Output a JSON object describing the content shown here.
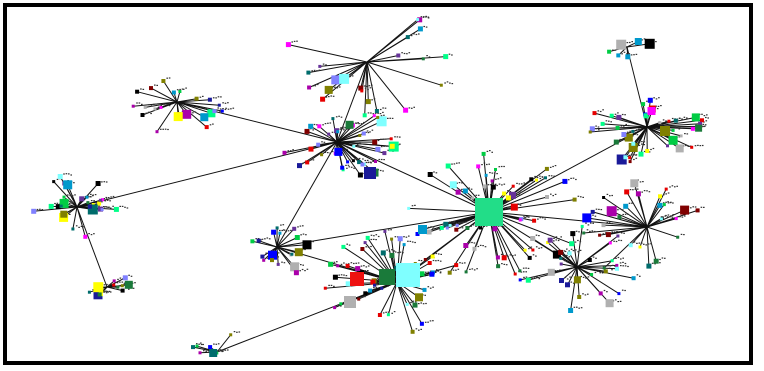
{
  "diagram": {
    "type": "network-graph",
    "border_color": "#000000",
    "background": "#ffffff",
    "node_palette": [
      "#000000",
      "#1a7a3a",
      "#006c6c",
      "#00cc44",
      "#1a1a99",
      "#0000ff",
      "#aa00aa",
      "#ff00ff",
      "#ffff00",
      "#e60000",
      "#b0b0b0",
      "#8080ff",
      "#808000",
      "#7fffff",
      "#00ff88",
      "#0099cc",
      "#663399",
      "#800000"
    ],
    "hub_nodes": [
      {
        "id": "hub-mint",
        "color": "#22dd88"
      },
      {
        "id": "hub-cyan",
        "color": "#7fffff"
      },
      {
        "id": "hub-red",
        "color": "#ee1111"
      },
      {
        "id": "hub-green",
        "color": "#1a7a3a"
      },
      {
        "id": "hub-navy",
        "color": "#1a1a99"
      },
      {
        "id": "hub-olive",
        "color": "#808000"
      },
      {
        "id": "hub-grey",
        "color": "#b0b0b0"
      }
    ]
  }
}
